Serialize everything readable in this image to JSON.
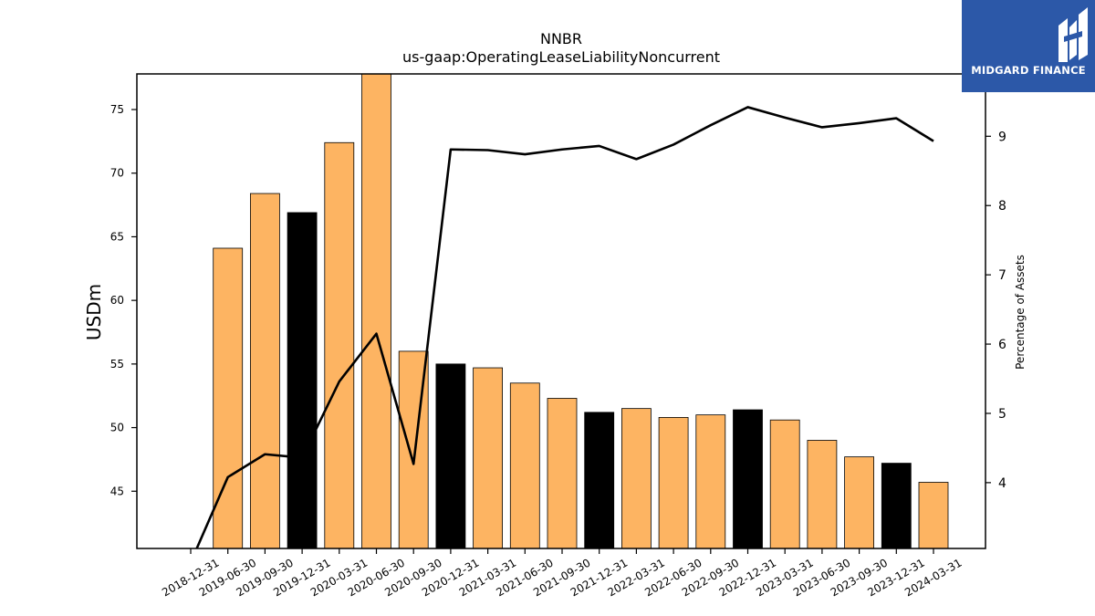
{
  "chart_data": {
    "type": "bar",
    "title": "NNBR",
    "subtitle": "us-gaap:OperatingLeaseLiabilityNoncurrent",
    "ylabel": "USDm",
    "y2label": "Percentage of Assets",
    "ylim": [
      40.5,
      77.8
    ],
    "y2lim": [
      3.05,
      9.9
    ],
    "yticks": [
      45,
      50,
      55,
      60,
      65,
      70,
      75
    ],
    "y2ticks": [
      4,
      5,
      6,
      7,
      8,
      9
    ],
    "categories": [
      "2018-12-31",
      "2019-06-30",
      "2019-09-30",
      "2019-12-31",
      "2020-03-31",
      "2020-06-30",
      "2020-09-30",
      "2020-12-31",
      "2021-03-31",
      "2021-06-30",
      "2021-09-30",
      "2021-12-31",
      "2022-03-31",
      "2022-06-30",
      "2022-09-30",
      "2022-12-31",
      "2023-03-31",
      "2023-06-30",
      "2023-09-30",
      "2023-12-31",
      "2024-03-31"
    ],
    "series": [
      {
        "type": "bar",
        "values": [
          null,
          64.1,
          68.4,
          66.9,
          72.4,
          77.8,
          56.0,
          55.0,
          54.7,
          53.5,
          52.3,
          51.2,
          51.5,
          50.8,
          51.0,
          51.4,
          50.6,
          49.0,
          47.7,
          47.2,
          45.7
        ],
        "highlight": [
          false,
          false,
          false,
          true,
          false,
          false,
          false,
          true,
          false,
          false,
          false,
          true,
          false,
          false,
          false,
          true,
          false,
          false,
          false,
          true,
          false
        ]
      },
      {
        "type": "line",
        "axis": "right",
        "values": [
          2.85,
          4.08,
          4.41,
          4.36,
          5.46,
          6.15,
          4.27,
          8.81,
          8.8,
          8.74,
          8.81,
          8.86,
          8.67,
          8.88,
          9.16,
          9.42,
          9.27,
          9.13,
          9.19,
          9.26,
          8.93
        ]
      }
    ],
    "colors": {
      "bar": "#fdb462",
      "bar_highlight": "#000000",
      "line": "#000000"
    },
    "grid": false
  },
  "logo": {
    "text": "MIDGARD FINANCE"
  }
}
